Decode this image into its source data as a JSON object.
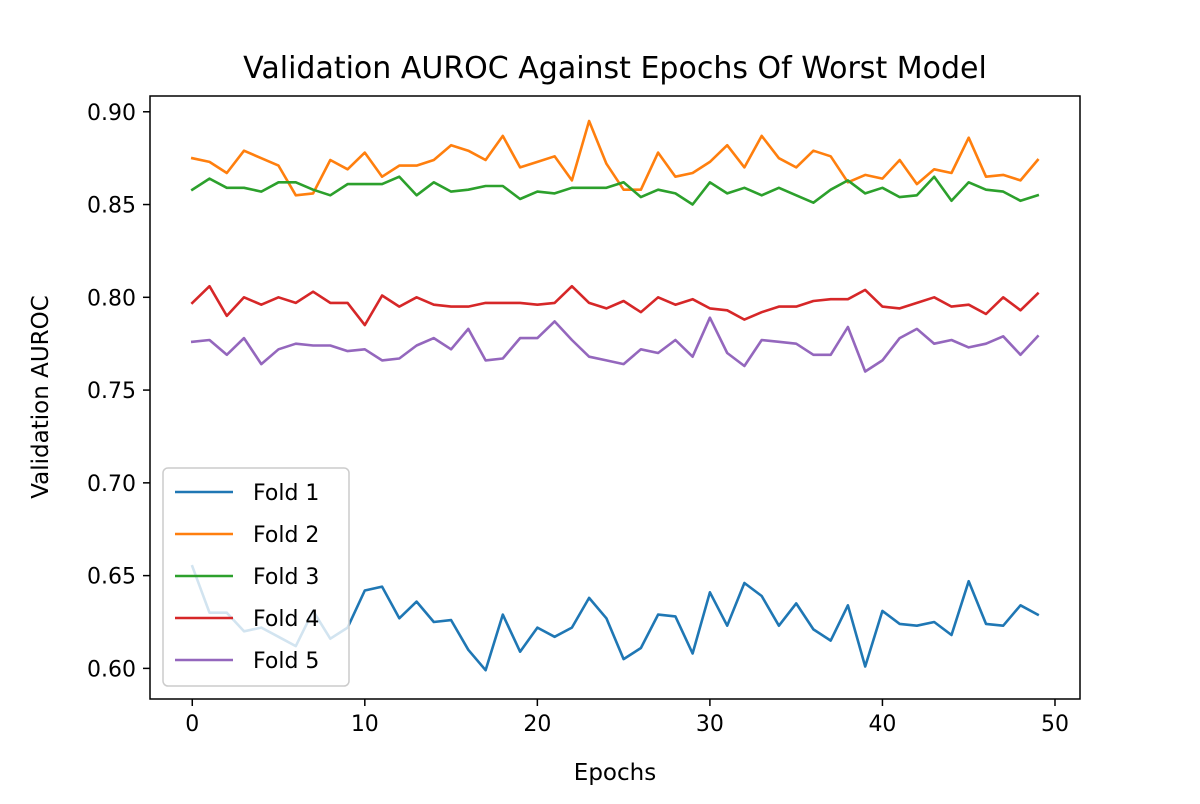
{
  "chart_data": {
    "type": "line",
    "title": "Validation AUROC Against Epochs Of Worst Model",
    "xlabel": "Epochs",
    "ylabel": "Validation AUROC",
    "xlim": [
      -2.45,
      51.45
    ],
    "ylim": [
      0.5835,
      0.9085
    ],
    "xticks": [
      0,
      10,
      20,
      30,
      40,
      50
    ],
    "yticks": [
      0.6,
      0.65,
      0.7,
      0.75,
      0.8,
      0.85,
      0.9
    ],
    "ytick_labels": [
      "0.60",
      "0.65",
      "0.70",
      "0.75",
      "0.80",
      "0.85",
      "0.90"
    ],
    "xtick_labels": [
      "0",
      "10",
      "20",
      "30",
      "40",
      "50"
    ],
    "grid": false,
    "legend_position": "lower-left",
    "x": [
      0,
      1,
      2,
      3,
      4,
      5,
      6,
      7,
      8,
      9,
      10,
      11,
      12,
      13,
      14,
      15,
      16,
      17,
      18,
      19,
      20,
      21,
      22,
      23,
      24,
      25,
      26,
      27,
      28,
      29,
      30,
      31,
      32,
      33,
      34,
      35,
      36,
      37,
      38,
      39,
      40,
      41,
      42,
      43,
      44,
      45,
      46,
      47,
      48,
      49
    ],
    "series": [
      {
        "name": "Fold 1",
        "color": "#1f77b4",
        "values": [
          0.655,
          0.63,
          0.63,
          0.62,
          0.622,
          0.617,
          0.612,
          0.631,
          0.616,
          0.622,
          0.642,
          0.644,
          0.627,
          0.636,
          0.625,
          0.626,
          0.61,
          0.599,
          0.629,
          0.609,
          0.622,
          0.617,
          0.622,
          0.638,
          0.627,
          0.605,
          0.611,
          0.629,
          0.628,
          0.608,
          0.641,
          0.623,
          0.646,
          0.639,
          0.623,
          0.635,
          0.621,
          0.615,
          0.634,
          0.601,
          0.631,
          0.624,
          0.623,
          0.625,
          0.618,
          0.647,
          0.624,
          0.623,
          0.634,
          0.629
        ]
      },
      {
        "name": "Fold 2",
        "color": "#ff7f0e",
        "values": [
          0.875,
          0.873,
          0.867,
          0.879,
          0.875,
          0.871,
          0.855,
          0.856,
          0.874,
          0.869,
          0.878,
          0.865,
          0.871,
          0.871,
          0.874,
          0.882,
          0.879,
          0.874,
          0.887,
          0.87,
          0.873,
          0.876,
          0.863,
          0.895,
          0.872,
          0.858,
          0.858,
          0.878,
          0.865,
          0.867,
          0.873,
          0.882,
          0.87,
          0.887,
          0.875,
          0.87,
          0.879,
          0.876,
          0.862,
          0.866,
          0.864,
          0.874,
          0.861,
          0.869,
          0.867,
          0.886,
          0.865,
          0.866,
          0.863,
          0.874
        ]
      },
      {
        "name": "Fold 3",
        "color": "#2ca02c",
        "values": [
          0.858,
          0.864,
          0.859,
          0.859,
          0.857,
          0.862,
          0.862,
          0.858,
          0.855,
          0.861,
          0.861,
          0.861,
          0.865,
          0.855,
          0.862,
          0.857,
          0.858,
          0.86,
          0.86,
          0.853,
          0.857,
          0.856,
          0.859,
          0.859,
          0.859,
          0.862,
          0.854,
          0.858,
          0.856,
          0.85,
          0.862,
          0.856,
          0.859,
          0.855,
          0.859,
          0.855,
          0.851,
          0.858,
          0.863,
          0.856,
          0.859,
          0.854,
          0.855,
          0.865,
          0.852,
          0.862,
          0.858,
          0.857,
          0.852,
          0.855
        ]
      },
      {
        "name": "Fold 4",
        "color": "#d62728",
        "values": [
          0.797,
          0.806,
          0.79,
          0.8,
          0.796,
          0.8,
          0.797,
          0.803,
          0.797,
          0.797,
          0.785,
          0.801,
          0.795,
          0.8,
          0.796,
          0.795,
          0.795,
          0.797,
          0.797,
          0.797,
          0.796,
          0.797,
          0.806,
          0.797,
          0.794,
          0.798,
          0.792,
          0.8,
          0.796,
          0.799,
          0.794,
          0.793,
          0.788,
          0.792,
          0.795,
          0.795,
          0.798,
          0.799,
          0.799,
          0.804,
          0.795,
          0.794,
          0.797,
          0.8,
          0.795,
          0.796,
          0.791,
          0.8,
          0.793,
          0.802
        ]
      },
      {
        "name": "Fold 5",
        "color": "#9467bd",
        "values": [
          0.776,
          0.777,
          0.769,
          0.778,
          0.764,
          0.772,
          0.775,
          0.774,
          0.774,
          0.771,
          0.772,
          0.766,
          0.767,
          0.774,
          0.778,
          0.772,
          0.783,
          0.766,
          0.767,
          0.778,
          0.778,
          0.787,
          0.777,
          0.768,
          0.766,
          0.764,
          0.772,
          0.77,
          0.777,
          0.768,
          0.789,
          0.77,
          0.763,
          0.777,
          0.776,
          0.775,
          0.769,
          0.769,
          0.784,
          0.76,
          0.766,
          0.778,
          0.783,
          0.775,
          0.777,
          0.773,
          0.775,
          0.779,
          0.769,
          0.779
        ]
      }
    ]
  }
}
